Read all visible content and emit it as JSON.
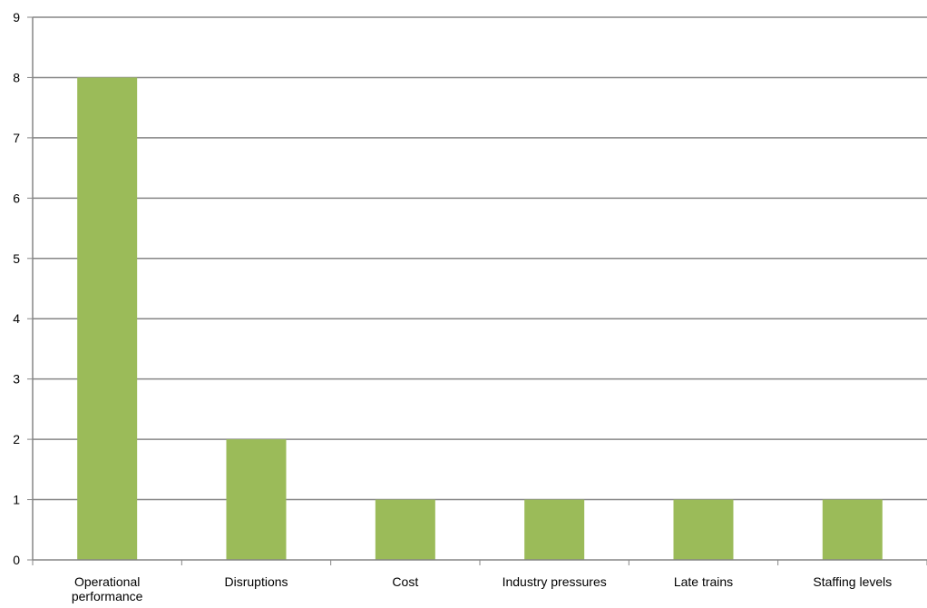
{
  "chart_data": {
    "type": "bar",
    "categories": [
      "Operational performance",
      "Disruptions",
      "Cost",
      "Industry pressures",
      "Late trains",
      "Staffing levels"
    ],
    "category_label_lines": [
      [
        "Operational",
        "performance"
      ],
      [
        "Disruptions"
      ],
      [
        "Cost"
      ],
      [
        "Industry pressures"
      ],
      [
        "Late trains"
      ],
      [
        "Staffing levels"
      ]
    ],
    "values": [
      8,
      2,
      1,
      1,
      1,
      1
    ],
    "ylim": [
      0,
      9
    ],
    "y_ticks": [
      0,
      1,
      2,
      3,
      4,
      5,
      6,
      7,
      8,
      9
    ],
    "title": "",
    "xlabel": "",
    "ylabel": "",
    "grid": true,
    "legend": "none",
    "colors": {
      "bar": "#9BBB59",
      "grid": "#868686",
      "axis": "#868686",
      "text": "#000000"
    }
  }
}
